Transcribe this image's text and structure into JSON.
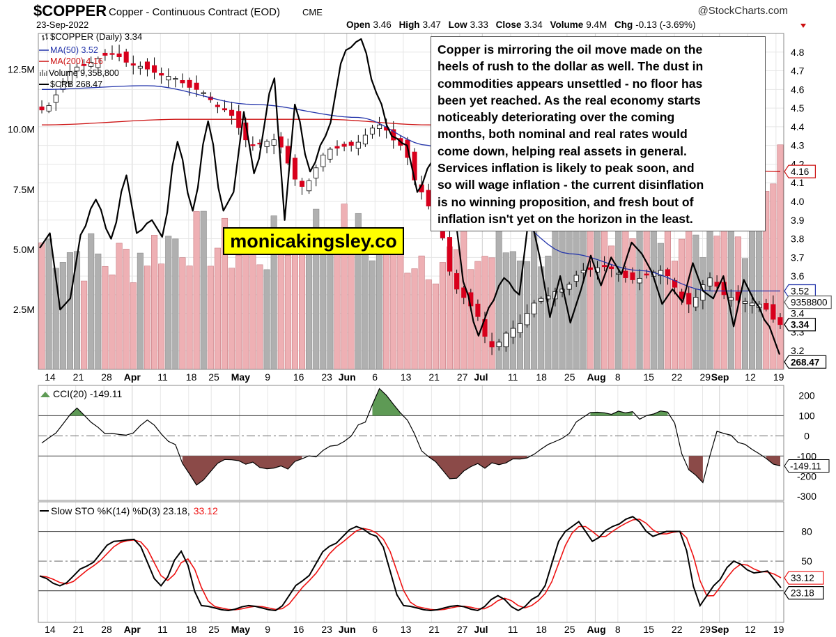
{
  "header": {
    "symbol": "$COPPER",
    "name": "Copper - Continuous Contract (EOD)",
    "exchange": "CME",
    "date": "23-Sep-2022",
    "watermark": "@StockCharts.com",
    "quote": {
      "open_label": "Open",
      "open": "3.46",
      "high_label": "High",
      "high": "3.47",
      "low_label": "Low",
      "low": "3.33",
      "close_label": "Close",
      "close": "3.34",
      "volume_label": "Volume",
      "volume": "9.4M",
      "chg_label": "Chg",
      "chg": "-0.13 (-3.69%)"
    }
  },
  "legend": {
    "main": "$COPPER (Daily) 3.34",
    "ma50": "MA(50) 3.52",
    "ma200": "MA(200) 4.16",
    "volume": "Volume 9,358,800",
    "crb": "$CRB 268.47"
  },
  "annotation": {
    "lines": [
      "Copper is mirroring the oil move made on the",
      "heels of rush to the dollar as well. The dust in",
      "commodities appears unsettled - no floor has",
      "been yet reached. As the real economy starts",
      "noticeably deteriorating over the coming",
      "months, both nominal and real rates would",
      "come down, helping real assets in general.",
      "Services inflation is likely to peak soon, and",
      "so will wage inflation - the current disinflation",
      "is no winning proposition, and fresh bout of",
      "inflation isn't yet on the horizon in the least."
    ]
  },
  "brand": "monicakingsley.co",
  "colors": {
    "up": "#ffffff",
    "down": "#d8001c",
    "ma50": "#2233aa",
    "ma200": "#cc1111",
    "crb": "#000000",
    "grid": "#e4e4e4",
    "vol_up": "#b0b0b0",
    "vol_down": "#eeb0b4",
    "cci_pos": "#5e9a55",
    "cci_neg": "#8b4a48",
    "sto_k": "#000000",
    "sto_d": "#ee1111"
  },
  "chart_data": [
    {
      "type": "candlestick",
      "title": "$COPPER (Daily) 3.34",
      "x_tick_labels": [
        "14",
        "21",
        "28",
        "Apr",
        "11",
        "18",
        "25",
        "May",
        "9",
        "16",
        "23",
        "Jun",
        "6",
        "13",
        "21",
        "27",
        "Jul",
        "11",
        "18",
        "25",
        "Aug",
        "8",
        "15",
        "22",
        "29",
        "Sep",
        "12",
        "19"
      ],
      "bold_ticks": [
        "Apr",
        "May",
        "Jun",
        "Jul",
        "Aug",
        "Sep"
      ],
      "ylim": [
        3.1,
        4.9
      ],
      "y_ticks": [
        "4.8",
        "4.7",
        "4.6",
        "4.5",
        "4.4",
        "4.3",
        "4.2",
        "4.1",
        "4.0",
        "3.9",
        "3.8",
        "3.7",
        "3.6",
        "3.5",
        "3.4",
        "3.3",
        "3.2"
      ],
      "close_anchors": [
        [
          0,
          4.49
        ],
        [
          5,
          4.72
        ],
        [
          10,
          4.79
        ],
        [
          13,
          4.73
        ],
        [
          18,
          4.67
        ],
        [
          22,
          4.6
        ],
        [
          26,
          4.49
        ],
        [
          30,
          4.3
        ],
        [
          33,
          4.33
        ],
        [
          37,
          4.08
        ],
        [
          41,
          4.28
        ],
        [
          44,
          4.3
        ],
        [
          48,
          4.41
        ],
        [
          51,
          4.3
        ],
        [
          54,
          4.05
        ],
        [
          56,
          3.9
        ],
        [
          59,
          3.53
        ],
        [
          61,
          3.44
        ],
        [
          64,
          3.22
        ],
        [
          67,
          3.32
        ],
        [
          71,
          3.48
        ],
        [
          74,
          3.53
        ],
        [
          77,
          3.63
        ],
        [
          80,
          3.65
        ],
        [
          84,
          3.58
        ],
        [
          88,
          3.63
        ],
        [
          92,
          3.45
        ],
        [
          95,
          3.59
        ],
        [
          97,
          3.5
        ],
        [
          99,
          3.47
        ],
        [
          102,
          3.45
        ],
        [
          105,
          3.34
        ]
      ],
      "ma50_anchors": [
        [
          0,
          4.6
        ],
        [
          15,
          4.62
        ],
        [
          30,
          4.52
        ],
        [
          45,
          4.45
        ],
        [
          55,
          4.3
        ],
        [
          65,
          3.95
        ],
        [
          75,
          3.72
        ],
        [
          85,
          3.63
        ],
        [
          95,
          3.52
        ],
        [
          105,
          3.52
        ]
      ],
      "ma200_anchors": [
        [
          0,
          4.41
        ],
        [
          20,
          4.44
        ],
        [
          40,
          4.44
        ],
        [
          55,
          4.41
        ],
        [
          70,
          4.34
        ],
        [
          85,
          4.24
        ],
        [
          95,
          4.18
        ],
        [
          105,
          4.16
        ]
      ],
      "crb_anchors": [
        [
          0,
          3.75
        ],
        [
          2,
          3.83
        ],
        [
          4,
          3.42
        ],
        [
          6,
          3.48
        ],
        [
          8,
          3.82
        ],
        [
          11,
          4.01
        ],
        [
          14,
          3.8
        ],
        [
          17,
          4.14
        ],
        [
          19,
          3.83
        ],
        [
          22,
          3.9
        ],
        [
          24,
          3.81
        ],
        [
          27,
          4.32
        ],
        [
          30,
          3.95
        ],
        [
          33,
          4.43
        ],
        [
          36,
          3.95
        ],
        [
          38,
          4.05
        ],
        [
          40,
          4.48
        ],
        [
          42,
          4.15
        ],
        [
          46,
          4.66
        ],
        [
          48,
          3.9
        ],
        [
          50,
          4.52
        ],
        [
          53,
          4.16
        ],
        [
          56,
          4.35
        ],
        [
          60,
          4.81
        ],
        [
          63,
          4.87
        ],
        [
          66,
          4.58
        ],
        [
          69,
          4.35
        ],
        [
          72,
          4.3
        ],
        [
          74,
          4.05
        ],
        [
          77,
          4.22
        ],
        [
          79,
          3.92
        ],
        [
          81,
          4.02
        ],
        [
          83,
          3.57
        ],
        [
          86,
          3.28
        ],
        [
          88,
          3.43
        ],
        [
          91,
          3.59
        ],
        [
          94,
          3.5
        ],
        [
          96,
          3.95
        ],
        [
          98,
          3.7
        ],
        [
          100,
          3.38
        ],
        [
          102,
          3.6
        ],
        [
          104,
          3.35
        ],
        [
          106,
          3.52
        ],
        [
          108,
          3.71
        ],
        [
          110,
          3.55
        ],
        [
          112,
          3.7
        ],
        [
          114,
          3.61
        ],
        [
          116,
          3.78
        ],
        [
          118,
          3.72
        ],
        [
          120,
          3.62
        ],
        [
          122,
          3.45
        ],
        [
          124,
          3.53
        ],
        [
          126,
          3.46
        ],
        [
          128,
          3.67
        ],
        [
          130,
          3.52
        ],
        [
          132,
          3.48
        ],
        [
          134,
          3.6
        ],
        [
          136,
          3.33
        ],
        [
          138,
          3.58
        ],
        [
          140,
          3.47
        ],
        [
          143,
          3.33
        ],
        [
          145,
          3.18
        ]
      ],
      "right_labels": {
        "ma200": "4.16",
        "ma50": "3.52",
        "volume": "9358800",
        "close": "3.34",
        "crb": "268.47"
      }
    },
    {
      "type": "bar",
      "title": "Volume 9,358,800",
      "y_ticks": [
        "12.5M",
        "10.0M",
        "7.5M",
        "5.0M",
        "2.5M"
      ],
      "ylim": [
        0,
        14000000
      ],
      "values_anchors": [
        [
          0,
          5.3
        ],
        [
          10,
          4.5
        ],
        [
          20,
          5.5
        ],
        [
          30,
          4.9
        ],
        [
          40,
          6.0
        ],
        [
          50,
          5.0
        ],
        [
          60,
          4.6
        ],
        [
          70,
          5.2
        ],
        [
          80,
          6.4
        ],
        [
          90,
          5.8
        ],
        [
          100,
          5.6
        ],
        [
          105,
          9.36
        ]
      ]
    },
    {
      "type": "area",
      "title": "CCI(20) -149.11",
      "ylim": [
        -320,
        250
      ],
      "y_ticks": [
        "200",
        "100",
        "0",
        "-100",
        "-200",
        "-300"
      ],
      "last_label": "-149.11",
      "anchors": [
        [
          0,
          -40
        ],
        [
          5,
          130
        ],
        [
          9,
          15
        ],
        [
          12,
          -10
        ],
        [
          15,
          80
        ],
        [
          18,
          -20
        ],
        [
          22,
          -230
        ],
        [
          26,
          -120
        ],
        [
          30,
          -140
        ],
        [
          34,
          -160
        ],
        [
          38,
          -110
        ],
        [
          42,
          -50
        ],
        [
          46,
          60
        ],
        [
          48,
          230
        ],
        [
          51,
          120
        ],
        [
          55,
          -100
        ],
        [
          58,
          -210
        ],
        [
          62,
          -150
        ],
        [
          66,
          -130
        ],
        [
          70,
          -90
        ],
        [
          74,
          0
        ],
        [
          78,
          110
        ],
        [
          82,
          120
        ],
        [
          86,
          90
        ],
        [
          89,
          130
        ],
        [
          92,
          -170
        ],
        [
          94,
          -230
        ],
        [
          96,
          20
        ],
        [
          99,
          -20
        ],
        [
          102,
          -90
        ],
        [
          105,
          -149
        ]
      ]
    },
    {
      "type": "line",
      "title": "Slow STO %K(14) %D(3) 23.18, 33.12",
      "label": "Slow STO %K(14) %D(3) 23.18,",
      "label_d": "33.12",
      "ylim": [
        -12,
        110
      ],
      "y_ticks": [
        "80",
        "50"
      ],
      "last_k": "23.18",
      "last_d": "33.12",
      "k_anchors": [
        [
          0,
          35
        ],
        [
          3,
          25
        ],
        [
          7,
          45
        ],
        [
          11,
          70
        ],
        [
          14,
          72
        ],
        [
          18,
          25
        ],
        [
          21,
          60
        ],
        [
          24,
          5
        ],
        [
          28,
          0
        ],
        [
          31,
          5
        ],
        [
          35,
          0
        ],
        [
          39,
          30
        ],
        [
          43,
          65
        ],
        [
          47,
          85
        ],
        [
          50,
          75
        ],
        [
          54,
          5
        ],
        [
          58,
          0
        ],
        [
          62,
          5
        ],
        [
          65,
          0
        ],
        [
          68,
          15
        ],
        [
          71,
          0
        ],
        [
          74,
          15
        ],
        [
          78,
          80
        ],
        [
          80,
          90
        ],
        [
          82,
          70
        ],
        [
          85,
          85
        ],
        [
          88,
          95
        ],
        [
          91,
          75
        ],
        [
          93,
          80
        ],
        [
          95,
          80
        ],
        [
          98,
          5
        ],
        [
          100,
          25
        ],
        [
          103,
          50
        ],
        [
          106,
          38
        ],
        [
          108,
          40
        ],
        [
          110,
          23
        ]
      ]
    }
  ]
}
